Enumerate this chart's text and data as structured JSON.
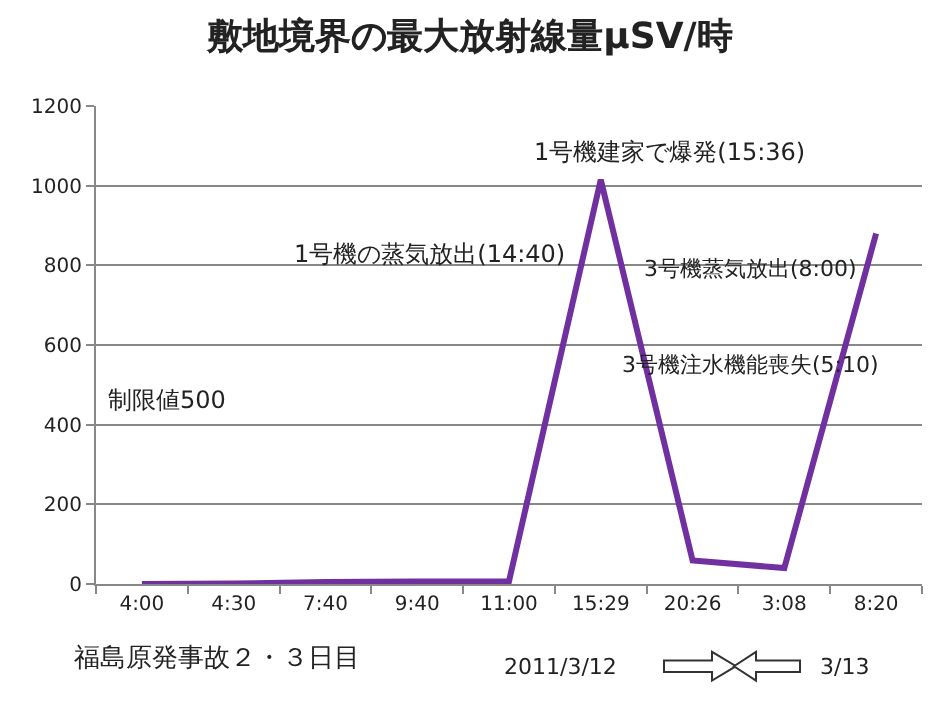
{
  "chart_data": {
    "type": "line",
    "title": "敷地境界の最大放射線量μSV/時",
    "categories": [
      "4:00",
      "4:30",
      "7:40",
      "9:40",
      "11:00",
      "15:29",
      "20:26",
      "3:08",
      "8:20"
    ],
    "series": [
      {
        "color": "#70309f",
        "values": [
          0,
          1,
          5,
          6,
          7,
          1015,
          59,
          40,
          880
        ]
      }
    ],
    "ylim": [
      0,
      1200
    ],
    "yticks": [
      0,
      200,
      400,
      600,
      800,
      1000,
      1200
    ],
    "grid": "y",
    "marker": "none",
    "line_style": "solid",
    "annotations": [
      "1号機建家で爆発(15:36)",
      "1号機の蒸気放出(14:40)",
      "3号機蒸気放出(8:00)",
      "3号機注水機能喪失(5:10)",
      "制限値500",
      "福島原発事故２・３日目",
      "2011/3/12",
      "3/13"
    ]
  }
}
